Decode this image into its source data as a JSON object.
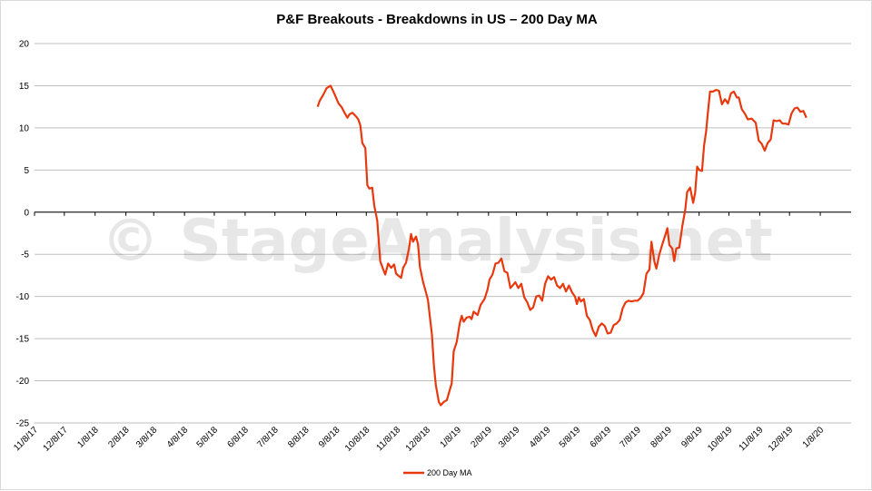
{
  "chart_data": {
    "type": "line",
    "title": "P&F Breakouts - Breakdowns in US – 200 Day MA",
    "xlabel": "",
    "ylabel": "",
    "ylim": [
      -25,
      20
    ],
    "yticks": [
      20,
      15,
      10,
      5,
      0,
      -5,
      -10,
      -15,
      -20,
      -25
    ],
    "xlim": [
      "2017-11-08",
      "2020-02-08"
    ],
    "xticks": [
      "11/8/17",
      "12/8/17",
      "1/8/18",
      "2/8/18",
      "3/8/18",
      "4/8/18",
      "5/8/18",
      "6/8/18",
      "7/8/18",
      "8/8/18",
      "9/8/18",
      "10/8/18",
      "11/8/18",
      "12/8/18",
      "1/8/19",
      "2/8/19",
      "3/8/19",
      "4/8/19",
      "5/8/19",
      "6/8/19",
      "7/8/19",
      "8/8/19",
      "9/8/19",
      "10/8/19",
      "11/8/19",
      "12/8/19",
      "1/8/20"
    ],
    "grid": true,
    "legend_position": "bottom",
    "watermark": "© StageAnalysis.net",
    "series": [
      {
        "name": "200 Day MA",
        "color": "#e8380d",
        "points": [
          [
            "2018-08-20",
            12.5
          ],
          [
            "2018-08-22",
            13.2
          ],
          [
            "2018-08-26",
            14.0
          ],
          [
            "2018-08-29",
            14.7
          ],
          [
            "2018-09-02",
            15.0
          ],
          [
            "2018-09-06",
            14.0
          ],
          [
            "2018-09-10",
            12.9
          ],
          [
            "2018-09-13",
            12.5
          ],
          [
            "2018-09-17",
            11.6
          ],
          [
            "2018-09-19",
            11.2
          ],
          [
            "2018-09-21",
            11.6
          ],
          [
            "2018-09-24",
            11.8
          ],
          [
            "2018-09-28",
            11.3
          ],
          [
            "2018-09-30",
            11.0
          ],
          [
            "2018-10-02",
            10.3
          ],
          [
            "2018-10-04",
            8.2
          ],
          [
            "2018-10-07",
            7.6
          ],
          [
            "2018-10-09",
            3.2
          ],
          [
            "2018-10-11",
            2.8
          ],
          [
            "2018-10-14",
            2.9
          ],
          [
            "2018-10-16",
            0.8
          ],
          [
            "2018-10-19",
            -1.0
          ],
          [
            "2018-10-22",
            -5.8
          ],
          [
            "2018-10-25",
            -6.8
          ],
          [
            "2018-10-27",
            -7.4
          ],
          [
            "2018-10-30",
            -6.1
          ],
          [
            "2018-11-02",
            -6.6
          ],
          [
            "2018-11-05",
            -6.2
          ],
          [
            "2018-11-07",
            -7.3
          ],
          [
            "2018-11-12",
            -7.8
          ],
          [
            "2018-11-14",
            -6.6
          ],
          [
            "2018-11-17",
            -6.0
          ],
          [
            "2018-11-20",
            -4.3
          ],
          [
            "2018-11-22",
            -2.6
          ],
          [
            "2018-11-24",
            -3.5
          ],
          [
            "2018-11-27",
            -2.9
          ],
          [
            "2018-11-29",
            -3.8
          ],
          [
            "2018-12-01",
            -6.5
          ],
          [
            "2018-12-04",
            -8.2
          ],
          [
            "2018-12-07",
            -9.5
          ],
          [
            "2018-12-09",
            -10.4
          ],
          [
            "2018-12-13",
            -14.5
          ],
          [
            "2018-12-15",
            -18.2
          ],
          [
            "2018-12-17",
            -20.5
          ],
          [
            "2018-12-20",
            -22.5
          ],
          [
            "2018-12-22",
            -22.9
          ],
          [
            "2018-12-25",
            -22.5
          ],
          [
            "2018-12-28",
            -22.3
          ],
          [
            "2019-01-02",
            -20.3
          ],
          [
            "2019-01-04",
            -16.5
          ],
          [
            "2019-01-07",
            -15.4
          ],
          [
            "2019-01-10",
            -13.2
          ],
          [
            "2019-01-12",
            -12.3
          ],
          [
            "2019-01-14",
            -13.0
          ],
          [
            "2019-01-17",
            -12.5
          ],
          [
            "2019-01-20",
            -12.4
          ],
          [
            "2019-01-22",
            -12.7
          ],
          [
            "2019-01-24",
            -11.8
          ],
          [
            "2019-01-28",
            -12.2
          ],
          [
            "2019-01-31",
            -11.0
          ],
          [
            "2019-02-04",
            -10.3
          ],
          [
            "2019-02-07",
            -9.2
          ],
          [
            "2019-02-09",
            -8.0
          ],
          [
            "2019-02-12",
            -7.4
          ],
          [
            "2019-02-15",
            -6.1
          ],
          [
            "2019-02-18",
            -6.0
          ],
          [
            "2019-02-21",
            -5.5
          ],
          [
            "2019-02-24",
            -7.0
          ],
          [
            "2019-02-27",
            -7.2
          ],
          [
            "2019-03-02",
            -9.0
          ],
          [
            "2019-03-05",
            -8.6
          ],
          [
            "2019-03-07",
            -8.3
          ],
          [
            "2019-03-10",
            -9.0
          ],
          [
            "2019-03-13",
            -8.5
          ],
          [
            "2019-03-16",
            -10.1
          ],
          [
            "2019-03-19",
            -10.7
          ],
          [
            "2019-03-22",
            -11.6
          ],
          [
            "2019-03-25",
            -11.3
          ],
          [
            "2019-03-28",
            -10.0
          ],
          [
            "2019-03-31",
            -9.9
          ],
          [
            "2019-04-03",
            -10.5
          ],
          [
            "2019-04-06",
            -8.5
          ],
          [
            "2019-04-09",
            -7.6
          ],
          [
            "2019-04-12",
            -8.0
          ],
          [
            "2019-04-15",
            -7.7
          ],
          [
            "2019-04-18",
            -8.7
          ],
          [
            "2019-04-21",
            -9.0
          ],
          [
            "2019-04-24",
            -8.5
          ],
          [
            "2019-04-27",
            -9.4
          ],
          [
            "2019-04-30",
            -8.7
          ],
          [
            "2019-05-03",
            -9.5
          ],
          [
            "2019-05-06",
            -10.0
          ],
          [
            "2019-05-08",
            -10.9
          ],
          [
            "2019-05-10",
            -10.1
          ],
          [
            "2019-05-12",
            -10.6
          ],
          [
            "2019-05-15",
            -10.3
          ],
          [
            "2019-05-18",
            -12.3
          ],
          [
            "2019-05-21",
            -12.8
          ],
          [
            "2019-05-24",
            -14.0
          ],
          [
            "2019-05-27",
            -14.7
          ],
          [
            "2019-05-30",
            -13.6
          ],
          [
            "2019-06-02",
            -13.2
          ],
          [
            "2019-06-05",
            -13.5
          ],
          [
            "2019-06-08",
            -14.4
          ],
          [
            "2019-06-11",
            -14.3
          ],
          [
            "2019-06-14",
            -13.4
          ],
          [
            "2019-06-17",
            -13.2
          ],
          [
            "2019-06-20",
            -12.8
          ],
          [
            "2019-06-23",
            -11.4
          ],
          [
            "2019-06-26",
            -10.7
          ],
          [
            "2019-06-29",
            -10.5
          ],
          [
            "2019-07-02",
            -10.6
          ],
          [
            "2019-07-05",
            -10.5
          ],
          [
            "2019-07-08",
            -10.5
          ],
          [
            "2019-07-11",
            -10.2
          ],
          [
            "2019-07-14",
            -9.6
          ],
          [
            "2019-07-17",
            -7.3
          ],
          [
            "2019-07-20",
            -6.8
          ],
          [
            "2019-07-22",
            -3.5
          ],
          [
            "2019-07-25",
            -5.9
          ],
          [
            "2019-07-27",
            -6.7
          ],
          [
            "2019-07-30",
            -5.0
          ],
          [
            "2019-08-02",
            -3.8
          ],
          [
            "2019-08-05",
            -2.7
          ],
          [
            "2019-08-07",
            -1.9
          ],
          [
            "2019-08-09",
            -3.9
          ],
          [
            "2019-08-12",
            -4.3
          ],
          [
            "2019-08-14",
            -5.8
          ],
          [
            "2019-08-16",
            -4.3
          ],
          [
            "2019-08-19",
            -4.2
          ],
          [
            "2019-08-22",
            -1.7
          ],
          [
            "2019-08-25",
            0.3
          ],
          [
            "2019-08-27",
            2.4
          ],
          [
            "2019-08-30",
            2.9
          ],
          [
            "2019-09-02",
            1.1
          ],
          [
            "2019-09-04",
            2.3
          ],
          [
            "2019-09-06",
            5.4
          ],
          [
            "2019-09-08",
            5.0
          ],
          [
            "2019-09-11",
            4.9
          ],
          [
            "2019-09-13",
            7.9
          ],
          [
            "2019-09-15",
            9.5
          ],
          [
            "2019-09-17",
            12.0
          ],
          [
            "2019-09-19",
            14.3
          ],
          [
            "2019-09-22",
            14.3
          ],
          [
            "2019-09-25",
            14.5
          ],
          [
            "2019-09-28",
            14.4
          ],
          [
            "2019-10-01",
            12.8
          ],
          [
            "2019-10-04",
            13.4
          ],
          [
            "2019-10-07",
            12.9
          ],
          [
            "2019-10-10",
            14.1
          ],
          [
            "2019-10-13",
            14.3
          ],
          [
            "2019-10-16",
            13.6
          ],
          [
            "2019-10-18",
            13.6
          ],
          [
            "2019-10-21",
            12.2
          ],
          [
            "2019-10-24",
            11.7
          ],
          [
            "2019-10-27",
            11.0
          ],
          [
            "2019-10-31",
            11.1
          ],
          [
            "2019-11-04",
            10.6
          ],
          [
            "2019-11-07",
            8.5
          ],
          [
            "2019-11-10",
            8.1
          ],
          [
            "2019-11-13",
            7.3
          ],
          [
            "2019-11-16",
            8.2
          ],
          [
            "2019-11-19",
            8.6
          ],
          [
            "2019-11-22",
            10.9
          ],
          [
            "2019-11-25",
            10.8
          ],
          [
            "2019-11-28",
            10.9
          ],
          [
            "2019-12-01",
            10.5
          ],
          [
            "2019-12-04",
            10.5
          ],
          [
            "2019-12-07",
            10.4
          ],
          [
            "2019-12-10",
            11.7
          ],
          [
            "2019-12-13",
            12.3
          ],
          [
            "2019-12-16",
            12.4
          ],
          [
            "2019-12-19",
            11.9
          ],
          [
            "2019-12-22",
            12.0
          ],
          [
            "2019-12-25",
            11.2
          ]
        ]
      }
    ]
  }
}
